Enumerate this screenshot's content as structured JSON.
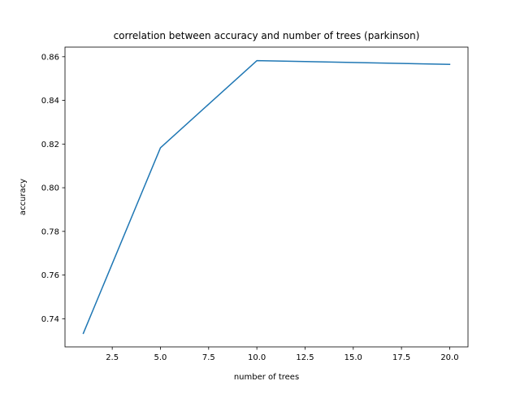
{
  "chart_data": {
    "type": "line",
    "title": "correlation between accuracy and number of trees (parkinson)",
    "xlabel": "number of trees",
    "ylabel": "accuracy",
    "x": [
      1,
      5,
      10,
      20
    ],
    "series": [
      {
        "values": [
          0.7333,
          0.8183,
          0.8582,
          0.8565
        ],
        "color": "#1f77b4"
      }
    ],
    "xlim": [
      0.05,
      20.95
    ],
    "ylim": [
      0.7271,
      0.8644
    ],
    "xticks": [
      2.5,
      5.0,
      7.5,
      10.0,
      12.5,
      15.0,
      17.5,
      20.0
    ],
    "xtick_labels": [
      "2.5",
      "5.0",
      "7.5",
      "10.0",
      "12.5",
      "15.0",
      "17.5",
      "20.0"
    ],
    "yticks": [
      0.74,
      0.76,
      0.78,
      0.8,
      0.82,
      0.84,
      0.86
    ],
    "ytick_labels": [
      "0.74",
      "0.76",
      "0.78",
      "0.80",
      "0.82",
      "0.84",
      "0.86"
    ],
    "grid": false,
    "legend": "none"
  }
}
